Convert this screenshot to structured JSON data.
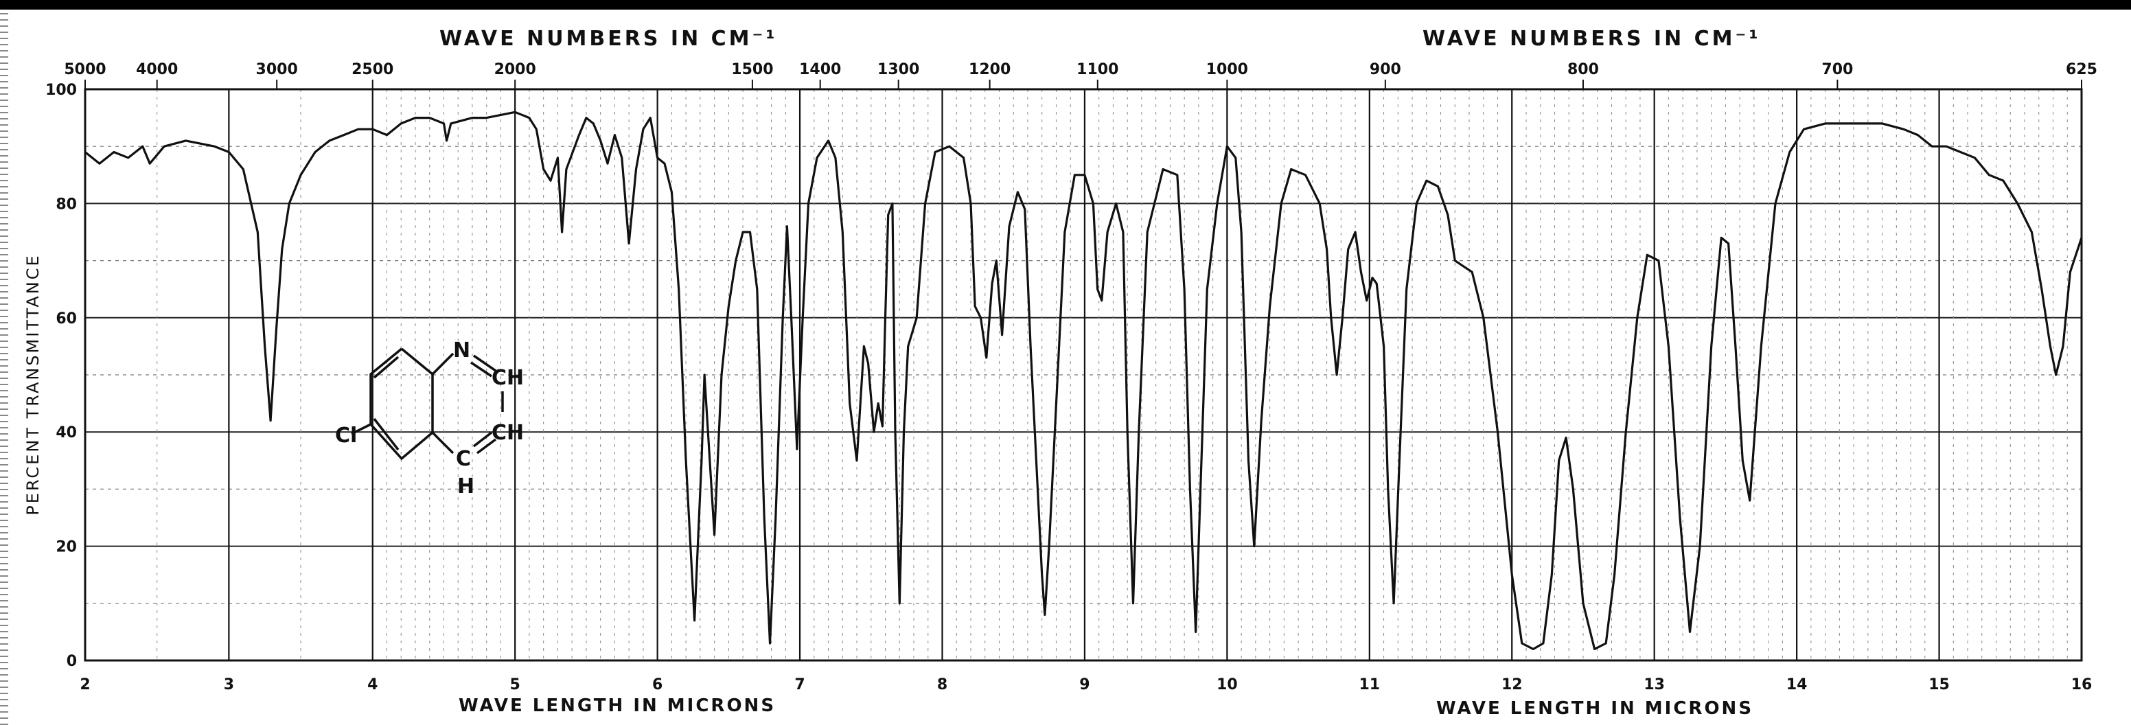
{
  "chart_data": {
    "type": "line",
    "title": "",
    "top_axis_label": "WAVE NUMBERS IN CM⁻¹",
    "top_axis_label_right": "WAVE NUMBERS IN CM⁻¹",
    "xlabel": "WAVE LENGTH IN MICRONS",
    "xlabel_right": "WAVE LENGTH IN MICRONS",
    "ylabel": "PERCENT TRANSMITTANCE",
    "x_unit": "microns",
    "xlim": [
      2,
      16
    ],
    "ylim": [
      0,
      100
    ],
    "x_segments": [
      {
        "from": 2,
        "to": 4,
        "fraction": 0.144
      },
      {
        "from": 4,
        "to": 16,
        "fraction": 0.856
      }
    ],
    "x_ticks": [
      "2",
      "3",
      "4",
      "5",
      "6",
      "7",
      "8",
      "9",
      "10",
      "11",
      "12",
      "13",
      "14",
      "15",
      "16"
    ],
    "y_ticks": [
      "0",
      "20",
      "40",
      "60",
      "80",
      "100"
    ],
    "top_ticks": [
      {
        "label": "5000",
        "wavenumber": 5000
      },
      {
        "label": "4000",
        "wavenumber": 4000
      },
      {
        "label": "3000",
        "wavenumber": 3000
      },
      {
        "label": "2500",
        "wavenumber": 2500
      },
      {
        "label": "2000",
        "wavenumber": 2000
      },
      {
        "label": "1500",
        "wavenumber": 1500
      },
      {
        "label": "1400",
        "wavenumber": 1400
      },
      {
        "label": "1300",
        "wavenumber": 1300
      },
      {
        "label": "1200",
        "wavenumber": 1200
      },
      {
        "label": "1100",
        "wavenumber": 1100
      },
      {
        "label": "1000",
        "wavenumber": 1000
      },
      {
        "label": "900",
        "wavenumber": 900
      },
      {
        "label": "800",
        "wavenumber": 800
      },
      {
        "label": "700",
        "wavenumber": 700
      },
      {
        "label": "625",
        "wavenumber": 625
      }
    ],
    "grid": true,
    "series": [
      {
        "color": "#111111",
        "points": [
          [
            2.0,
            89
          ],
          [
            2.1,
            87
          ],
          [
            2.2,
            89
          ],
          [
            2.3,
            88
          ],
          [
            2.4,
            90
          ],
          [
            2.45,
            87
          ],
          [
            2.55,
            90
          ],
          [
            2.7,
            91
          ],
          [
            2.9,
            90
          ],
          [
            3.0,
            89
          ],
          [
            3.1,
            86
          ],
          [
            3.2,
            75
          ],
          [
            3.25,
            55
          ],
          [
            3.29,
            42
          ],
          [
            3.33,
            58
          ],
          [
            3.37,
            72
          ],
          [
            3.42,
            80
          ],
          [
            3.5,
            85
          ],
          [
            3.6,
            89
          ],
          [
            3.7,
            91
          ],
          [
            3.8,
            92
          ],
          [
            3.9,
            93
          ],
          [
            4.0,
            93
          ],
          [
            4.1,
            92
          ],
          [
            4.2,
            94
          ],
          [
            4.3,
            95
          ],
          [
            4.4,
            95
          ],
          [
            4.5,
            94
          ],
          [
            4.52,
            91
          ],
          [
            4.55,
            94
          ],
          [
            4.7,
            95
          ],
          [
            4.8,
            95
          ],
          [
            5.0,
            96
          ],
          [
            5.1,
            95
          ],
          [
            5.15,
            93
          ],
          [
            5.2,
            86
          ],
          [
            5.25,
            84
          ],
          [
            5.3,
            88
          ],
          [
            5.33,
            75
          ],
          [
            5.36,
            86
          ],
          [
            5.45,
            92
          ],
          [
            5.5,
            95
          ],
          [
            5.55,
            94
          ],
          [
            5.6,
            91
          ],
          [
            5.65,
            87
          ],
          [
            5.7,
            92
          ],
          [
            5.75,
            88
          ],
          [
            5.8,
            73
          ],
          [
            5.85,
            86
          ],
          [
            5.9,
            93
          ],
          [
            5.95,
            95
          ],
          [
            6.0,
            88
          ],
          [
            6.05,
            87
          ],
          [
            6.1,
            82
          ],
          [
            6.15,
            65
          ],
          [
            6.2,
            35
          ],
          [
            6.26,
            7
          ],
          [
            6.31,
            35
          ],
          [
            6.33,
            50
          ],
          [
            6.36,
            38
          ],
          [
            6.4,
            22
          ],
          [
            6.45,
            50
          ],
          [
            6.5,
            62
          ],
          [
            6.55,
            70
          ],
          [
            6.6,
            75
          ],
          [
            6.65,
            75
          ],
          [
            6.7,
            65
          ],
          [
            6.75,
            25
          ],
          [
            6.79,
            3
          ],
          [
            6.83,
            25
          ],
          [
            6.88,
            60
          ],
          [
            6.91,
            76
          ],
          [
            6.94,
            60
          ],
          [
            6.98,
            37
          ],
          [
            7.02,
            60
          ],
          [
            7.06,
            80
          ],
          [
            7.12,
            88
          ],
          [
            7.2,
            91
          ],
          [
            7.25,
            88
          ],
          [
            7.3,
            75
          ],
          [
            7.35,
            45
          ],
          [
            7.4,
            35
          ],
          [
            7.45,
            55
          ],
          [
            7.48,
            52
          ],
          [
            7.52,
            40
          ],
          [
            7.55,
            45
          ],
          [
            7.58,
            41
          ],
          [
            7.6,
            60
          ],
          [
            7.62,
            78
          ],
          [
            7.65,
            80
          ],
          [
            7.67,
            40
          ],
          [
            7.7,
            10
          ],
          [
            7.73,
            40
          ],
          [
            7.76,
            55
          ],
          [
            7.82,
            60
          ],
          [
            7.88,
            80
          ],
          [
            7.95,
            89
          ],
          [
            8.05,
            90
          ],
          [
            8.15,
            88
          ],
          [
            8.2,
            80
          ],
          [
            8.23,
            62
          ],
          [
            8.27,
            60
          ],
          [
            8.31,
            53
          ],
          [
            8.35,
            66
          ],
          [
            8.38,
            70
          ],
          [
            8.42,
            57
          ],
          [
            8.47,
            76
          ],
          [
            8.53,
            82
          ],
          [
            8.58,
            79
          ],
          [
            8.62,
            55
          ],
          [
            8.66,
            35
          ],
          [
            8.7,
            15
          ],
          [
            8.72,
            8
          ],
          [
            8.75,
            20
          ],
          [
            8.8,
            45
          ],
          [
            8.86,
            75
          ],
          [
            8.93,
            85
          ],
          [
            9.0,
            85
          ],
          [
            9.06,
            80
          ],
          [
            9.09,
            65
          ],
          [
            9.12,
            63
          ],
          [
            9.16,
            75
          ],
          [
            9.22,
            80
          ],
          [
            9.27,
            75
          ],
          [
            9.3,
            40
          ],
          [
            9.34,
            10
          ],
          [
            9.38,
            40
          ],
          [
            9.44,
            75
          ],
          [
            9.55,
            86
          ],
          [
            9.65,
            85
          ],
          [
            9.7,
            65
          ],
          [
            9.74,
            30
          ],
          [
            9.78,
            5
          ],
          [
            9.82,
            35
          ],
          [
            9.86,
            65
          ],
          [
            9.93,
            80
          ],
          [
            10.0,
            90
          ],
          [
            10.06,
            88
          ],
          [
            10.1,
            75
          ],
          [
            10.15,
            35
          ],
          [
            10.19,
            20
          ],
          [
            10.24,
            42
          ],
          [
            10.3,
            62
          ],
          [
            10.38,
            80
          ],
          [
            10.45,
            86
          ],
          [
            10.55,
            85
          ],
          [
            10.65,
            80
          ],
          [
            10.7,
            72
          ],
          [
            10.73,
            60
          ],
          [
            10.77,
            50
          ],
          [
            10.81,
            60
          ],
          [
            10.85,
            72
          ],
          [
            10.9,
            75
          ],
          [
            10.94,
            68
          ],
          [
            10.98,
            63
          ],
          [
            11.02,
            67
          ],
          [
            11.05,
            66
          ],
          [
            11.1,
            55
          ],
          [
            11.13,
            30
          ],
          [
            11.17,
            10
          ],
          [
            11.21,
            35
          ],
          [
            11.26,
            65
          ],
          [
            11.33,
            80
          ],
          [
            11.4,
            84
          ],
          [
            11.48,
            83
          ],
          [
            11.55,
            78
          ],
          [
            11.6,
            70
          ],
          [
            11.66,
            69
          ],
          [
            11.72,
            68
          ],
          [
            11.8,
            60
          ],
          [
            11.9,
            40
          ],
          [
            12.0,
            15
          ],
          [
            12.07,
            3
          ],
          [
            12.15,
            2
          ],
          [
            12.22,
            3
          ],
          [
            12.28,
            15
          ],
          [
            12.33,
            35
          ],
          [
            12.38,
            39
          ],
          [
            12.43,
            30
          ],
          [
            12.5,
            10
          ],
          [
            12.58,
            2
          ],
          [
            12.66,
            3
          ],
          [
            12.72,
            15
          ],
          [
            12.8,
            40
          ],
          [
            12.88,
            60
          ],
          [
            12.95,
            71
          ],
          [
            13.03,
            70
          ],
          [
            13.1,
            55
          ],
          [
            13.18,
            25
          ],
          [
            13.25,
            5
          ],
          [
            13.32,
            20
          ],
          [
            13.4,
            55
          ],
          [
            13.47,
            74
          ],
          [
            13.52,
            73
          ],
          [
            13.57,
            55
          ],
          [
            13.62,
            35
          ],
          [
            13.67,
            28
          ],
          [
            13.75,
            55
          ],
          [
            13.85,
            80
          ],
          [
            13.95,
            89
          ],
          [
            14.05,
            93
          ],
          [
            14.2,
            94
          ],
          [
            14.4,
            94
          ],
          [
            14.6,
            94
          ],
          [
            14.75,
            93
          ],
          [
            14.85,
            92
          ],
          [
            14.95,
            90
          ],
          [
            15.05,
            90
          ],
          [
            15.15,
            89
          ],
          [
            15.25,
            88
          ],
          [
            15.35,
            85
          ],
          [
            15.45,
            84
          ],
          [
            15.55,
            80
          ],
          [
            15.65,
            75
          ],
          [
            15.72,
            65
          ],
          [
            15.78,
            55
          ],
          [
            15.82,
            50
          ],
          [
            15.87,
            55
          ],
          [
            15.92,
            68
          ],
          [
            16.0,
            74
          ]
        ]
      }
    ],
    "molecule": {
      "labels": [
        "Cl",
        "N",
        "CH",
        "CH",
        "C",
        "H"
      ]
    }
  }
}
